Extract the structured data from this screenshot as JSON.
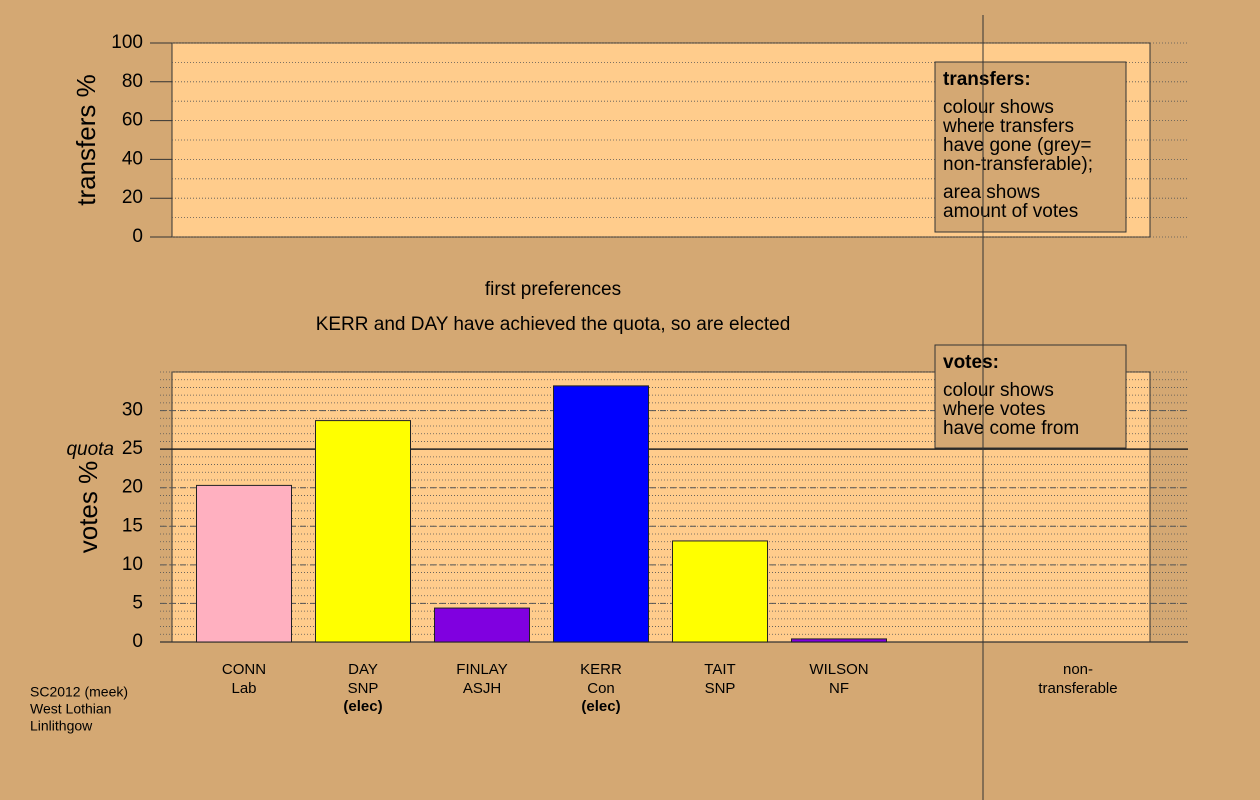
{
  "chart_data": [
    {
      "type": "bar",
      "ylabel": "transfers %",
      "ylim": [
        0,
        100
      ],
      "yticks": [
        0,
        20,
        40,
        60,
        80,
        100
      ],
      "minor_grid_step": 10,
      "legend": {
        "title": "transfers:",
        "paragraphs": [
          [
            "colour shows",
            "where transfers",
            "have gone (grey=",
            "non-transferable);"
          ],
          [
            "area shows",
            "amount of votes"
          ]
        ]
      }
    },
    {
      "type": "bar",
      "title": "first preferences",
      "subtitle": "KERR and DAY have achieved the quota, so are elected",
      "ylabel": "votes %",
      "ylim": [
        0,
        35
      ],
      "yticks": [
        0,
        5,
        10,
        15,
        20,
        25,
        30
      ],
      "minor_grid_step": 1,
      "quota": 25,
      "quota_label": "quota",
      "categories": [
        "CONN",
        "DAY",
        "FINLAY",
        "KERR",
        "TAIT",
        "WILSON",
        "non-"
      ],
      "parties": [
        "Lab",
        "SNP",
        "ASJH",
        "Con",
        "SNP",
        "NF",
        "transferable"
      ],
      "status": [
        null,
        "(elec)",
        null,
        "(elec)",
        null,
        null,
        null
      ],
      "values": [
        20.3,
        28.7,
        4.4,
        33.2,
        13.1,
        0.4,
        0
      ],
      "colors": [
        "#ffb0c0",
        "#ffff00",
        "#8000e0",
        "#0000ff",
        "#ffff00",
        "#8000e0",
        "#808080"
      ],
      "legend": {
        "title": "votes:",
        "paragraphs": [
          [
            "colour shows",
            "where votes",
            "have come from"
          ]
        ]
      }
    }
  ],
  "footer": [
    "SC2012 (meek)",
    "West Lothian",
    "Linlithgow"
  ]
}
